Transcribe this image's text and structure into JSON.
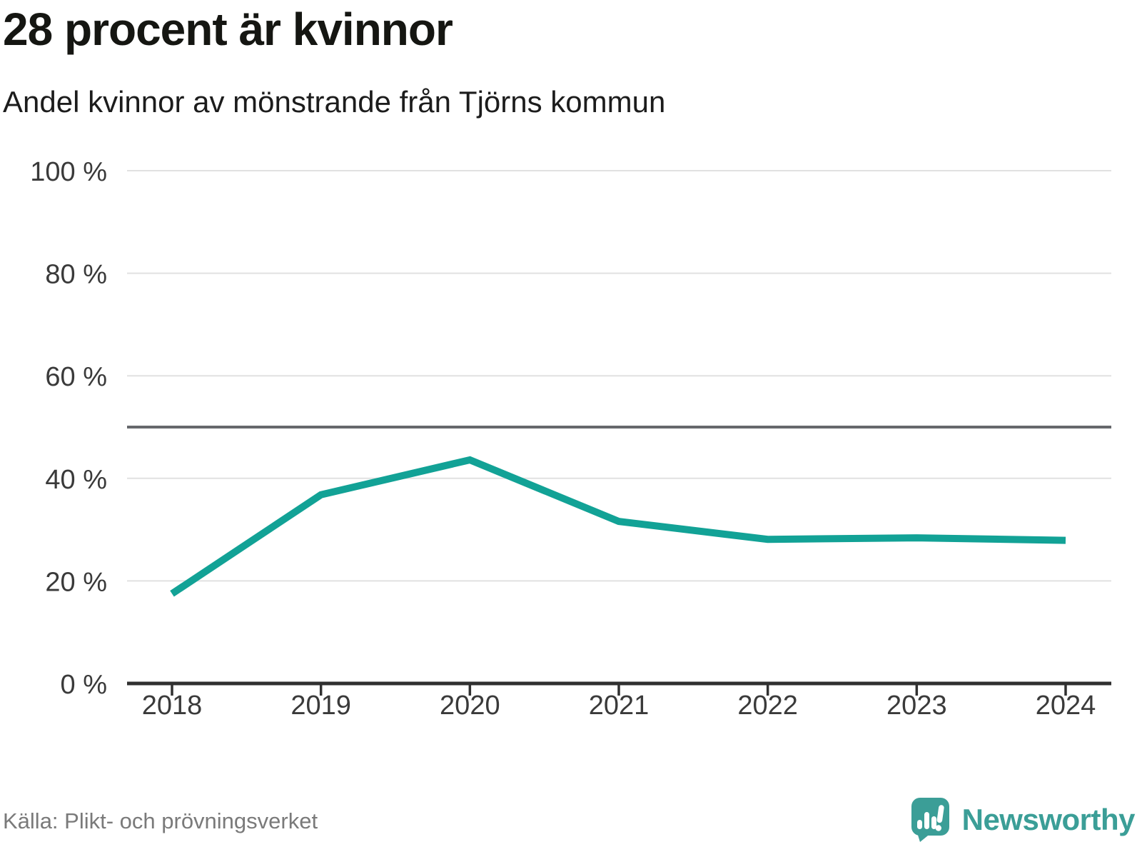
{
  "header": {
    "title": "28 procent är kvinnor",
    "subtitle": "Andel kvinnor av mönstrande från Tjörns kommun"
  },
  "chart_data": {
    "type": "line",
    "title": "28 procent är kvinnor",
    "subtitle": "Andel kvinnor av mönstrande från Tjörns kommun",
    "x_labels": [
      "2018",
      "2019",
      "2020",
      "2021",
      "2022",
      "2023",
      "2024"
    ],
    "series": [
      {
        "name": "Andel kvinnor av mönstrande",
        "values": [
          17.5,
          36.8,
          43.6,
          31.6,
          28.1,
          28.4,
          27.9
        ]
      }
    ],
    "ylim": [
      0,
      100
    ],
    "yticks": [
      0,
      20,
      40,
      60,
      80,
      100
    ],
    "ytick_labels": [
      "0 %",
      "20 %",
      "40 %",
      "60 %",
      "80 %",
      "100 %"
    ],
    "reference_line": 50,
    "grid": true,
    "legend": "none",
    "colors": {
      "line": "#12a296",
      "grid": "#e1e1e1",
      "reference": "#66686c",
      "axis": "#303030",
      "tick_text": "#3a3a3a"
    }
  },
  "footer": {
    "source": "Källa: Plikt- och prövningsverket",
    "brand": "Newsworthy",
    "brand_color": "#3b9e97"
  }
}
